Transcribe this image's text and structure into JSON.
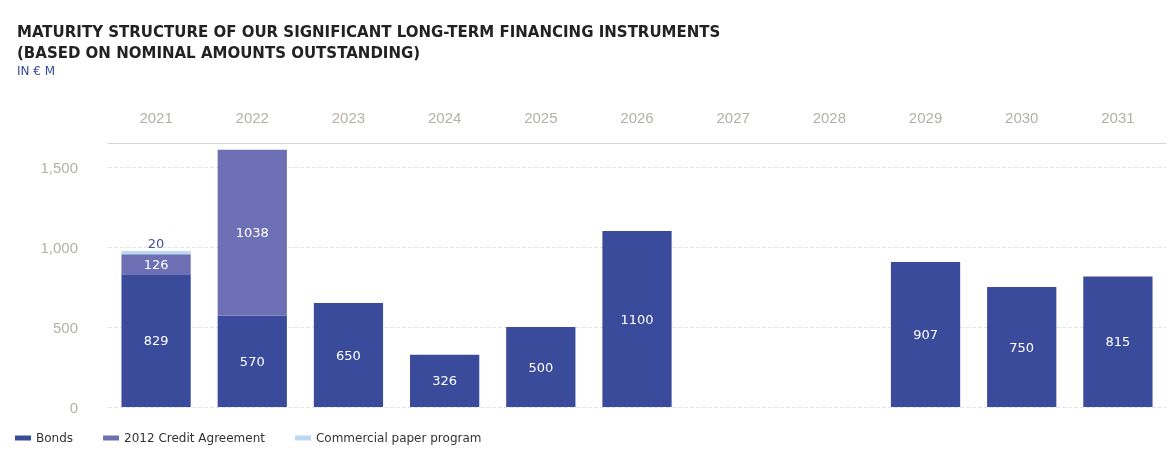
{
  "chart_data": {
    "type": "bar",
    "title": "MATURITY STRUCTURE OF OUR SIGNIFICANT LONG-TERM FINANCING INSTRUMENTS\n(BASED ON NOMINAL AMOUNTS OUTSTANDING)",
    "subtitle": "IN € M",
    "categories": [
      "2021",
      "2022",
      "2023",
      "2024",
      "2025",
      "2026",
      "2027",
      "2028",
      "2029",
      "2030",
      "2031"
    ],
    "stacked": true,
    "data_labels": true,
    "grid": "y",
    "legend": "bottom left",
    "ylim": [
      0,
      1650
    ],
    "yticks": [
      0,
      500,
      {
        "value": 1000,
        "label": "1,000"
      },
      {
        "value": 1500,
        "label": "1,500"
      }
    ],
    "series": [
      {
        "name": "Bonds",
        "color": "#3a4b9b",
        "values": [
          829,
          570,
          650,
          326,
          500,
          1100,
          null,
          null,
          907,
          750,
          815
        ]
      },
      {
        "name": "2012 Credit Agreement",
        "color": "#6d70b5",
        "values": [
          126,
          1038,
          null,
          null,
          null,
          null,
          null,
          null,
          null,
          null,
          null
        ]
      },
      {
        "name": "Commercial paper program",
        "color": "#bcd8ee",
        "values": [
          20,
          null,
          null,
          null,
          null,
          null,
          null,
          null,
          null,
          null,
          null
        ]
      }
    ]
  }
}
